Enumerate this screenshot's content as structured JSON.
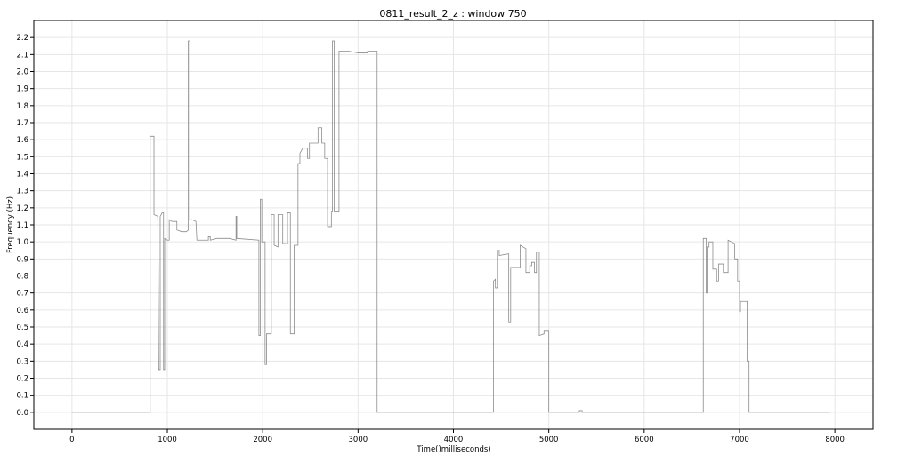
{
  "chart_data": {
    "type": "line",
    "title": "0811_result_2_z : window 750",
    "xlabel": "Time()milliseconds)",
    "ylabel": "Frequency (Hz)",
    "xlim": [
      -400,
      8400
    ],
    "ylim": [
      -0.1,
      2.3
    ],
    "xticks": [
      0,
      1000,
      2000,
      3000,
      4000,
      5000,
      6000,
      7000,
      8000
    ],
    "yticks": [
      0.0,
      0.1,
      0.2,
      0.3,
      0.4,
      0.5,
      0.6,
      0.7,
      0.8,
      0.9,
      1.0,
      1.1,
      1.2,
      1.3,
      1.4,
      1.5,
      1.6,
      1.7,
      1.8,
      1.9,
      2.0,
      2.1,
      2.2
    ],
    "grid": true,
    "step": true,
    "series": [
      {
        "color": "#8c8c8c",
        "points": [
          [
            0,
            0.0
          ],
          [
            820,
            0.0
          ],
          [
            820,
            1.62
          ],
          [
            860,
            1.62
          ],
          [
            860,
            1.16
          ],
          [
            900,
            1.15
          ],
          [
            910,
            0.25
          ],
          [
            925,
            0.25
          ],
          [
            925,
            1.15
          ],
          [
            945,
            1.17
          ],
          [
            960,
            1.17
          ],
          [
            960,
            0.25
          ],
          [
            972,
            0.25
          ],
          [
            972,
            1.02
          ],
          [
            1000,
            1.01
          ],
          [
            1020,
            1.01
          ],
          [
            1020,
            1.13
          ],
          [
            1050,
            1.12
          ],
          [
            1100,
            1.12
          ],
          [
            1100,
            1.07
          ],
          [
            1150,
            1.06
          ],
          [
            1200,
            1.06
          ],
          [
            1220,
            1.07
          ],
          [
            1220,
            2.18
          ],
          [
            1235,
            2.18
          ],
          [
            1235,
            1.13
          ],
          [
            1260,
            1.13
          ],
          [
            1300,
            1.12
          ],
          [
            1310,
            1.01
          ],
          [
            1380,
            1.01
          ],
          [
            1430,
            1.01
          ],
          [
            1430,
            1.03
          ],
          [
            1450,
            1.03
          ],
          [
            1450,
            1.01
          ],
          [
            1520,
            1.02
          ],
          [
            1650,
            1.02
          ],
          [
            1720,
            1.01
          ],
          [
            1720,
            1.15
          ],
          [
            1728,
            1.15
          ],
          [
            1728,
            1.02
          ],
          [
            1960,
            1.01
          ],
          [
            1960,
            0.45
          ],
          [
            1975,
            0.45
          ],
          [
            1975,
            1.25
          ],
          [
            1990,
            1.25
          ],
          [
            1990,
            1.0
          ],
          [
            2025,
            1.0
          ],
          [
            2025,
            0.28
          ],
          [
            2040,
            0.28
          ],
          [
            2040,
            0.46
          ],
          [
            2090,
            0.46
          ],
          [
            2090,
            1.16
          ],
          [
            2120,
            1.16
          ],
          [
            2120,
            0.98
          ],
          [
            2160,
            0.97
          ],
          [
            2160,
            1.16
          ],
          [
            2210,
            1.16
          ],
          [
            2210,
            0.99
          ],
          [
            2260,
            0.99
          ],
          [
            2260,
            1.17
          ],
          [
            2290,
            1.17
          ],
          [
            2290,
            0.46
          ],
          [
            2330,
            0.46
          ],
          [
            2330,
            0.98
          ],
          [
            2370,
            0.98
          ],
          [
            2370,
            1.46
          ],
          [
            2390,
            1.46
          ],
          [
            2390,
            1.52
          ],
          [
            2420,
            1.55
          ],
          [
            2470,
            1.55
          ],
          [
            2470,
            1.49
          ],
          [
            2490,
            1.49
          ],
          [
            2490,
            1.58
          ],
          [
            2580,
            1.58
          ],
          [
            2580,
            1.67
          ],
          [
            2620,
            1.67
          ],
          [
            2620,
            1.58
          ],
          [
            2650,
            1.58
          ],
          [
            2650,
            1.49
          ],
          [
            2680,
            1.49
          ],
          [
            2680,
            1.09
          ],
          [
            2720,
            1.09
          ],
          [
            2720,
            1.18
          ],
          [
            2730,
            1.18
          ],
          [
            2730,
            2.18
          ],
          [
            2750,
            2.18
          ],
          [
            2750,
            1.18
          ],
          [
            2800,
            1.18
          ],
          [
            2800,
            2.12
          ],
          [
            2900,
            2.12
          ],
          [
            3000,
            2.11
          ],
          [
            3100,
            2.11
          ],
          [
            3100,
            2.12
          ],
          [
            3200,
            2.12
          ],
          [
            3200,
            0.0
          ],
          [
            4420,
            0.0
          ],
          [
            4420,
            0.77
          ],
          [
            4440,
            0.78
          ],
          [
            4440,
            0.73
          ],
          [
            4460,
            0.73
          ],
          [
            4460,
            0.95
          ],
          [
            4480,
            0.95
          ],
          [
            4480,
            0.92
          ],
          [
            4580,
            0.93
          ],
          [
            4580,
            0.53
          ],
          [
            4600,
            0.53
          ],
          [
            4600,
            0.85
          ],
          [
            4700,
            0.85
          ],
          [
            4700,
            0.98
          ],
          [
            4760,
            0.96
          ],
          [
            4760,
            0.82
          ],
          [
            4800,
            0.82
          ],
          [
            4800,
            0.86
          ],
          [
            4820,
            0.86
          ],
          [
            4820,
            0.88
          ],
          [
            4850,
            0.88
          ],
          [
            4850,
            0.82
          ],
          [
            4870,
            0.82
          ],
          [
            4870,
            0.94
          ],
          [
            4900,
            0.94
          ],
          [
            4900,
            0.45
          ],
          [
            4950,
            0.46
          ],
          [
            4950,
            0.48
          ],
          [
            5000,
            0.48
          ],
          [
            5000,
            0.0
          ],
          [
            5320,
            0.0
          ],
          [
            5320,
            0.01
          ],
          [
            5350,
            0.01
          ],
          [
            5350,
            0.0
          ],
          [
            6620,
            0.0
          ],
          [
            6620,
            1.02
          ],
          [
            6650,
            1.02
          ],
          [
            6650,
            0.7
          ],
          [
            6660,
            0.7
          ],
          [
            6660,
            0.97
          ],
          [
            6680,
            0.97
          ],
          [
            6680,
            1.0
          ],
          [
            6720,
            1.0
          ],
          [
            6720,
            0.84
          ],
          [
            6760,
            0.84
          ],
          [
            6760,
            0.77
          ],
          [
            6780,
            0.77
          ],
          [
            6780,
            0.87
          ],
          [
            6830,
            0.87
          ],
          [
            6830,
            0.82
          ],
          [
            6880,
            0.82
          ],
          [
            6880,
            1.01
          ],
          [
            6950,
            0.99
          ],
          [
            6950,
            0.9
          ],
          [
            6980,
            0.9
          ],
          [
            6980,
            0.77
          ],
          [
            7000,
            0.77
          ],
          [
            7000,
            0.59
          ],
          [
            7010,
            0.59
          ],
          [
            7010,
            0.65
          ],
          [
            7080,
            0.65
          ],
          [
            7080,
            0.3
          ],
          [
            7100,
            0.3
          ],
          [
            7100,
            0.0
          ],
          [
            7950,
            0.0
          ]
        ]
      }
    ]
  }
}
